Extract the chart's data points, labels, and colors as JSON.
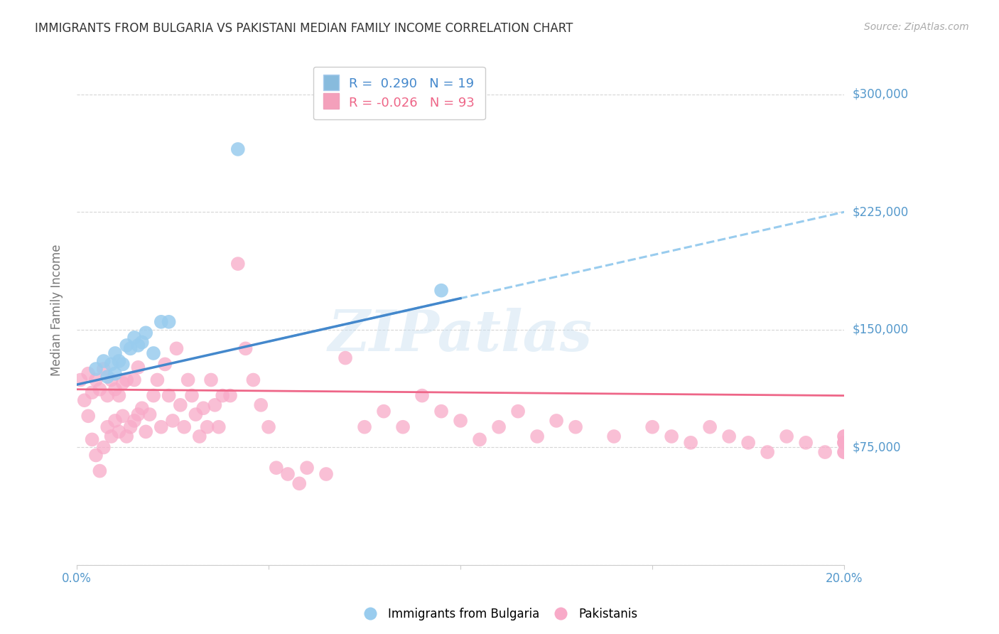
{
  "title": "IMMIGRANTS FROM BULGARIA VS PAKISTANI MEDIAN FAMILY INCOME CORRELATION CHART",
  "source": "Source: ZipAtlas.com",
  "ylabel_label": "Median Family Income",
  "x_min": 0.0,
  "x_max": 0.2,
  "y_min": 0,
  "y_max": 325000,
  "yticks": [
    0,
    75000,
    150000,
    225000,
    300000
  ],
  "xticks": [
    0.0,
    0.05,
    0.1,
    0.15,
    0.2
  ],
  "xtick_labels": [
    "0.0%",
    "",
    "",
    "",
    "20.0%"
  ],
  "legend1_label": "R =  0.290   N = 19",
  "legend2_label": "R = -0.026   N = 93",
  "legend1_color": "#88bbdd",
  "legend2_color": "#f4a0bb",
  "bg_color": "#ffffff",
  "grid_color": "#cccccc",
  "title_color": "#333333",
  "axis_label_color": "#777777",
  "tick_color": "#5599cc",
  "source_color": "#aaaaaa",
  "scatter_blue_color": "#99ccee",
  "scatter_pink_color": "#f8aac8",
  "line_blue_solid_color": "#4488cc",
  "line_blue_dashed_color": "#99ccee",
  "line_pink_color": "#ee6688",
  "watermark": "ZIPatlas",
  "blue_line_x0": 0.0,
  "blue_line_y0": 115000,
  "blue_line_x1": 0.2,
  "blue_line_y1": 225000,
  "pink_line_x0": 0.0,
  "pink_line_y0": 112000,
  "pink_line_x1": 0.2,
  "pink_line_y1": 108000,
  "blue_x": [
    0.005,
    0.007,
    0.008,
    0.009,
    0.01,
    0.01,
    0.011,
    0.012,
    0.013,
    0.014,
    0.015,
    0.016,
    0.017,
    0.018,
    0.02,
    0.022,
    0.024,
    0.095,
    0.042
  ],
  "blue_y": [
    125000,
    130000,
    120000,
    128000,
    122000,
    135000,
    130000,
    128000,
    140000,
    138000,
    145000,
    140000,
    142000,
    148000,
    135000,
    155000,
    155000,
    175000,
    265000
  ],
  "pink_x": [
    0.001,
    0.002,
    0.003,
    0.003,
    0.004,
    0.004,
    0.005,
    0.005,
    0.006,
    0.006,
    0.007,
    0.007,
    0.008,
    0.008,
    0.009,
    0.009,
    0.01,
    0.01,
    0.011,
    0.011,
    0.012,
    0.012,
    0.013,
    0.013,
    0.014,
    0.015,
    0.015,
    0.016,
    0.016,
    0.017,
    0.018,
    0.019,
    0.02,
    0.021,
    0.022,
    0.023,
    0.024,
    0.025,
    0.026,
    0.027,
    0.028,
    0.029,
    0.03,
    0.031,
    0.032,
    0.033,
    0.034,
    0.035,
    0.036,
    0.037,
    0.038,
    0.04,
    0.042,
    0.044,
    0.046,
    0.048,
    0.05,
    0.052,
    0.055,
    0.058,
    0.06,
    0.065,
    0.07,
    0.075,
    0.08,
    0.085,
    0.09,
    0.095,
    0.1,
    0.105,
    0.11,
    0.115,
    0.12,
    0.125,
    0.13,
    0.14,
    0.15,
    0.155,
    0.16,
    0.165,
    0.17,
    0.175,
    0.18,
    0.185,
    0.19,
    0.195,
    0.2,
    0.2,
    0.2,
    0.2,
    0.2,
    0.2,
    0.2
  ],
  "pink_y": [
    118000,
    105000,
    95000,
    122000,
    80000,
    110000,
    70000,
    118000,
    60000,
    112000,
    75000,
    125000,
    88000,
    108000,
    82000,
    118000,
    92000,
    112000,
    85000,
    108000,
    95000,
    116000,
    82000,
    118000,
    88000,
    92000,
    118000,
    96000,
    126000,
    100000,
    85000,
    96000,
    108000,
    118000,
    88000,
    128000,
    108000,
    92000,
    138000,
    102000,
    88000,
    118000,
    108000,
    96000,
    82000,
    100000,
    88000,
    118000,
    102000,
    88000,
    108000,
    108000,
    192000,
    138000,
    118000,
    102000,
    88000,
    62000,
    58000,
    52000,
    62000,
    58000,
    132000,
    88000,
    98000,
    88000,
    108000,
    98000,
    92000,
    80000,
    88000,
    98000,
    82000,
    92000,
    88000,
    82000,
    88000,
    82000,
    78000,
    88000,
    82000,
    78000,
    72000,
    82000,
    78000,
    72000,
    78000,
    82000,
    78000,
    72000,
    82000,
    78000,
    72000
  ]
}
